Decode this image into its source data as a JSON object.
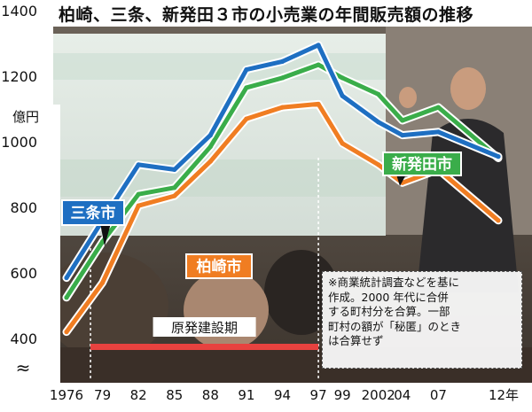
{
  "title": "柏崎、三条、新発田３市の小売業の年間販売額の推移",
  "chart_data": {
    "type": "line",
    "title": "柏崎、三条、新発田３市の小売業の年間販売額の推移",
    "ylabel": "億円",
    "xlabel": "",
    "x_tick_labels": [
      "1976",
      "79",
      "82",
      "85",
      "88",
      "91",
      "94",
      "97",
      "99",
      "2002",
      "04",
      "07",
      "12年"
    ],
    "x": [
      1976,
      1979,
      1982,
      1985,
      1988,
      1991,
      1994,
      1997,
      1999,
      2002,
      2004,
      2007,
      2012
    ],
    "y_ticks": [
      "1400",
      "1200",
      "1000",
      "800",
      "600",
      "400"
    ],
    "y_break_symbol": "≈",
    "ylim": [
      300,
      1400
    ],
    "grid": false,
    "series": [
      {
        "name": "三条市",
        "color": "#1e6fc2",
        "values": [
          585,
          760,
          930,
          915,
          1020,
          1220,
          1245,
          1295,
          1140,
          1060,
          1020,
          1030,
          955
        ]
      },
      {
        "name": "新発田市",
        "color": "#3aad4a",
        "values": [
          525,
          695,
          840,
          860,
          985,
          1165,
          1195,
          1235,
          1195,
          1145,
          1065,
          1105,
          950
        ]
      },
      {
        "name": "柏崎市",
        "color": "#f07d22",
        "values": [
          420,
          570,
          805,
          835,
          940,
          1070,
          1105,
          1115,
          995,
          930,
          875,
          915,
          760
        ]
      }
    ],
    "labels": {
      "sanjo": "三条市",
      "shibata": "新発田市",
      "kashiwazaki": "柏崎市"
    },
    "period_label": "原発建設期",
    "period_range": [
      1978,
      1997
    ]
  },
  "note": {
    "lines": [
      "※商業統計調査などを基に",
      "作成。2000 年代に合併",
      "する町村分を合算。一部",
      "町村の額が「秘匿」のとき",
      "は合算せず"
    ]
  },
  "colors": {
    "period_bar": "#e8423f",
    "background": "#ffffff"
  }
}
